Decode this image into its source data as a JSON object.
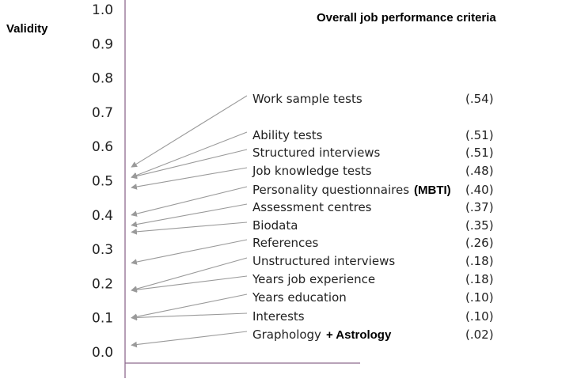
{
  "chart_data": {
    "type": "scatter",
    "title": "Overall job performance criteria",
    "ylabel": "Validity",
    "ylim": [
      0.0,
      1.0
    ],
    "yticks": [
      "0.0",
      "0.1",
      "0.2",
      "0.3",
      "0.4",
      "0.5",
      "0.6",
      "0.7",
      "0.8",
      "0.9",
      "1.0"
    ],
    "grid": false,
    "colors": {
      "axis": "#8e6b8e",
      "arrow": "#9a9a9a",
      "text": "#222222"
    },
    "items": [
      {
        "label": "Work sample tests",
        "value_text": "(.54)",
        "value": 0.54
      },
      {
        "label": "Ability tests",
        "value_text": "(.51)",
        "value": 0.51
      },
      {
        "label": "Structured interviews",
        "value_text": "(.51)",
        "value": 0.51
      },
      {
        "label": "Job knowledge tests",
        "value_text": "(.48)",
        "value": 0.48
      },
      {
        "label": "Personality questionnaires",
        "annotation": "(MBTI)",
        "value_text": "(.40)",
        "value": 0.4
      },
      {
        "label": "Assessment centres",
        "value_text": "(.37)",
        "value": 0.37
      },
      {
        "label": "Biodata",
        "value_text": "(.35)",
        "value": 0.35
      },
      {
        "label": "References",
        "value_text": "(.26)",
        "value": 0.26
      },
      {
        "label": "Unstructured interviews",
        "value_text": "(.18)",
        "value": 0.18
      },
      {
        "label": "Years job experience",
        "value_text": "(.18)",
        "value": 0.18
      },
      {
        "label": "Years education",
        "value_text": "(.10)",
        "value": 0.1
      },
      {
        "label": "Interests",
        "value_text": "(.10)",
        "value": 0.1
      },
      {
        "label": "Graphology",
        "annotation": "+ Astrology",
        "value_text": "(.02)",
        "value": 0.02
      }
    ]
  }
}
